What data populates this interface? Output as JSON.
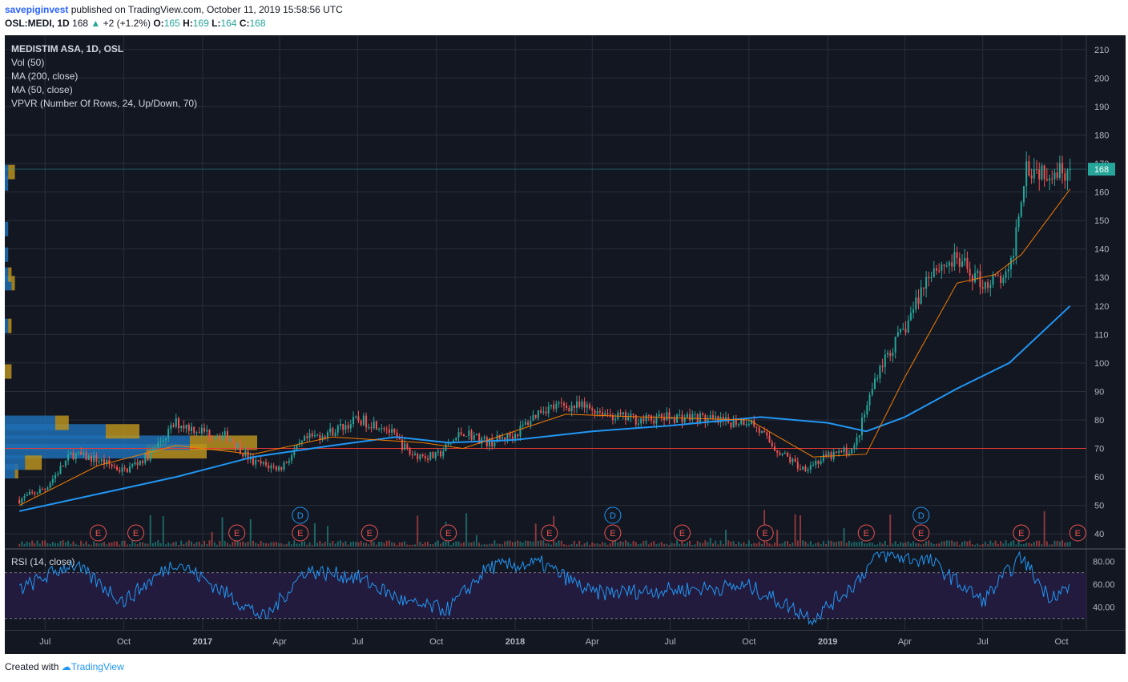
{
  "header": {
    "author": "savepiginvest",
    "published_text": "published on TradingView.com, October 11, 2019 15:58:56 UTC",
    "symbol": "OSL:MEDI, 1D",
    "last": "168",
    "change": "+2 (+1.2%)",
    "o_label": "O:",
    "o": "165",
    "h_label": "H:",
    "h": "169",
    "l_label": "L:",
    "l": "164",
    "c_label": "C:",
    "c": "168"
  },
  "legend": [
    "MEDISTIM ASA, 1D, OSL",
    "Vol (50)",
    "MA (200, close)",
    "MA (50, close)",
    "VPVR (Number Of Rows, 24, Up/Down, 70)"
  ],
  "rsi_legend": "RSI (14, close)",
  "footer": {
    "created_with": "Created with",
    "brand": "TradingView"
  },
  "colors": {
    "bg": "#131722",
    "up": "#26a69a",
    "down": "#ef5350",
    "ma200": "#2196f3",
    "ma50": "#f57c00",
    "support": "#e53935",
    "rsi": "#2196f3",
    "rsi_band": "#2a1a4a",
    "vp_up": "#1e6fb3",
    "vp_down": "#b8901e"
  },
  "chart_data": [
    {
      "type": "candlestick",
      "title": "MEDISTIM ASA, 1D, OSL",
      "x_ticks": [
        "Jul",
        "Oct",
        "2017",
        "Apr",
        "Jul",
        "Oct",
        "2018",
        "Apr",
        "Jul",
        "Oct",
        "2019",
        "Apr",
        "Jul",
        "Oct"
      ],
      "ylim": [
        35,
        215
      ],
      "y_ticks": [
        40,
        50,
        60,
        70,
        80,
        90,
        100,
        110,
        120,
        130,
        140,
        150,
        160,
        170,
        180,
        190,
        200,
        210
      ],
      "last_price": 168,
      "support_level": 70,
      "close_path": [
        {
          "date": "2016-06-01",
          "price": 52
        },
        {
          "date": "2016-07-01",
          "price": 56
        },
        {
          "date": "2016-08-01",
          "price": 68
        },
        {
          "date": "2016-09-01",
          "price": 66
        },
        {
          "date": "2016-10-01",
          "price": 62
        },
        {
          "date": "2016-11-01",
          "price": 68
        },
        {
          "date": "2016-12-01",
          "price": 79
        },
        {
          "date": "2017-01-01",
          "price": 76
        },
        {
          "date": "2017-02-01",
          "price": 74
        },
        {
          "date": "2017-03-01",
          "price": 65
        },
        {
          "date": "2017-04-01",
          "price": 63
        },
        {
          "date": "2017-05-01",
          "price": 73
        },
        {
          "date": "2017-06-01",
          "price": 76
        },
        {
          "date": "2017-07-01",
          "price": 80
        },
        {
          "date": "2017-08-01",
          "price": 78
        },
        {
          "date": "2017-09-01",
          "price": 68
        },
        {
          "date": "2017-10-01",
          "price": 67
        },
        {
          "date": "2017-11-01",
          "price": 76
        },
        {
          "date": "2017-12-01",
          "price": 72
        },
        {
          "date": "2018-01-01",
          "price": 75
        },
        {
          "date": "2018-02-01",
          "price": 84
        },
        {
          "date": "2018-03-01",
          "price": 85
        },
        {
          "date": "2018-04-01",
          "price": 84
        },
        {
          "date": "2018-05-01",
          "price": 81
        },
        {
          "date": "2018-06-01",
          "price": 80
        },
        {
          "date": "2018-07-01",
          "price": 81
        },
        {
          "date": "2018-08-01",
          "price": 81
        },
        {
          "date": "2018-09-01",
          "price": 79
        },
        {
          "date": "2018-10-01",
          "price": 80
        },
        {
          "date": "2018-11-01",
          "price": 70
        },
        {
          "date": "2018-12-01",
          "price": 63
        },
        {
          "date": "2019-01-01",
          "price": 67
        },
        {
          "date": "2019-02-01",
          "price": 70
        },
        {
          "date": "2019-03-01",
          "price": 98
        },
        {
          "date": "2019-04-01",
          "price": 112
        },
        {
          "date": "2019-05-01",
          "price": 133
        },
        {
          "date": "2019-06-01",
          "price": 136
        },
        {
          "date": "2019-07-01",
          "price": 128
        },
        {
          "date": "2019-08-01",
          "price": 130
        },
        {
          "date": "2019-08-20",
          "price": 170
        },
        {
          "date": "2019-09-01",
          "price": 168
        },
        {
          "date": "2019-10-11",
          "price": 168
        }
      ],
      "series": [
        {
          "name": "MA (200, close)",
          "points": [
            {
              "date": "2016-06-01",
              "price": 48
            },
            {
              "date": "2016-09-01",
              "price": 54
            },
            {
              "date": "2016-12-01",
              "price": 60
            },
            {
              "date": "2017-03-01",
              "price": 67
            },
            {
              "date": "2017-06-01",
              "price": 71
            },
            {
              "date": "2017-08-15",
              "price": 74
            },
            {
              "date": "2017-10-15",
              "price": 72
            },
            {
              "date": "2018-01-01",
              "price": 73
            },
            {
              "date": "2018-04-01",
              "price": 76
            },
            {
              "date": "2018-07-01",
              "price": 78
            },
            {
              "date": "2018-10-15",
              "price": 81
            },
            {
              "date": "2019-01-01",
              "price": 79
            },
            {
              "date": "2019-02-15",
              "price": 76
            },
            {
              "date": "2019-04-01",
              "price": 81
            },
            {
              "date": "2019-06-01",
              "price": 91
            },
            {
              "date": "2019-08-01",
              "price": 100
            },
            {
              "date": "2019-10-11",
              "price": 120
            }
          ]
        },
        {
          "name": "MA (50, close)",
          "points": [
            {
              "date": "2016-06-01",
              "price": 50
            },
            {
              "date": "2016-09-01",
              "price": 64
            },
            {
              "date": "2016-12-01",
              "price": 71
            },
            {
              "date": "2017-03-01",
              "price": 68
            },
            {
              "date": "2017-06-01",
              "price": 74
            },
            {
              "date": "2017-09-15",
              "price": 72
            },
            {
              "date": "2017-11-01",
              "price": 70
            },
            {
              "date": "2018-03-01",
              "price": 82
            },
            {
              "date": "2018-06-01",
              "price": 81
            },
            {
              "date": "2018-10-01",
              "price": 80
            },
            {
              "date": "2018-12-15",
              "price": 67
            },
            {
              "date": "2019-02-15",
              "price": 68
            },
            {
              "date": "2019-04-01",
              "price": 95
            },
            {
              "date": "2019-06-01",
              "price": 128
            },
            {
              "date": "2019-07-15",
              "price": 131
            },
            {
              "date": "2019-08-15",
              "price": 138
            },
            {
              "date": "2019-10-11",
              "price": 161
            }
          ]
        }
      ],
      "earnings_markers": [
        "2016-09-01",
        "2016-10-15",
        "2017-02-10",
        "2017-04-25",
        "2017-07-15",
        "2017-10-15",
        "2018-02-10",
        "2018-04-25",
        "2018-07-15",
        "2018-10-20",
        "2019-02-15",
        "2019-04-20",
        "2019-08-15",
        "2019-10-20"
      ],
      "dividend_markers": [
        "2017-04-25",
        "2018-04-25",
        "2019-04-20"
      ],
      "volume_profile": [
        {
          "price": 69,
          "up": 0.42,
          "down": 0.18
        },
        {
          "price": 72,
          "up": 0.55,
          "down": 0.2
        },
        {
          "price": 76,
          "up": 0.3,
          "down": 0.1
        },
        {
          "price": 79,
          "up": 0.15,
          "down": 0.04
        },
        {
          "price": 62,
          "up": 0.03,
          "down": 0.01
        },
        {
          "price": 65,
          "up": 0.06,
          "down": 0.05
        },
        {
          "price": 97,
          "up": 0.0,
          "down": 0.02
        },
        {
          "price": 113,
          "up": 0.01,
          "down": 0.01
        },
        {
          "price": 128,
          "up": 0.02,
          "down": 0.01
        },
        {
          "price": 131,
          "up": 0.01,
          "down": 0.01
        },
        {
          "price": 138,
          "up": 0.01,
          "down": 0.0
        },
        {
          "price": 147,
          "up": 0.01,
          "down": 0.0
        },
        {
          "price": 163,
          "up": 0.01,
          "down": 0.0
        },
        {
          "price": 167,
          "up": 0.01,
          "down": 0.02
        }
      ]
    },
    {
      "type": "line",
      "title": "RSI (14, close)",
      "ylim": [
        20,
        90
      ],
      "y_ticks": [
        40,
        60,
        80
      ],
      "bands": [
        30,
        70
      ],
      "series": [
        {
          "name": "RSI (14, close)",
          "points": [
            {
              "date": "2016-06-01",
              "rsi": 55
            },
            {
              "date": "2016-08-01",
              "rsi": 78
            },
            {
              "date": "2016-10-01",
              "rsi": 45
            },
            {
              "date": "2016-12-01",
              "rsi": 80
            },
            {
              "date": "2017-02-01",
              "rsi": 50
            },
            {
              "date": "2017-03-15",
              "rsi": 30
            },
            {
              "date": "2017-05-01",
              "rsi": 72
            },
            {
              "date": "2017-07-01",
              "rsi": 66
            },
            {
              "date": "2017-09-01",
              "rsi": 42
            },
            {
              "date": "2017-10-15",
              "rsi": 38
            },
            {
              "date": "2017-12-01",
              "rsi": 75
            },
            {
              "date": "2018-02-01",
              "rsi": 78
            },
            {
              "date": "2018-04-01",
              "rsi": 52
            },
            {
              "date": "2018-07-01",
              "rsi": 55
            },
            {
              "date": "2018-10-01",
              "rsi": 58
            },
            {
              "date": "2018-12-15",
              "rsi": 30
            },
            {
              "date": "2019-02-01",
              "rsi": 60
            },
            {
              "date": "2019-03-01",
              "rsi": 86
            },
            {
              "date": "2019-05-01",
              "rsi": 80
            },
            {
              "date": "2019-07-01",
              "rsi": 45
            },
            {
              "date": "2019-08-15",
              "rsi": 84
            },
            {
              "date": "2019-09-15",
              "rsi": 50
            },
            {
              "date": "2019-10-11",
              "rsi": 56
            }
          ]
        }
      ]
    }
  ]
}
